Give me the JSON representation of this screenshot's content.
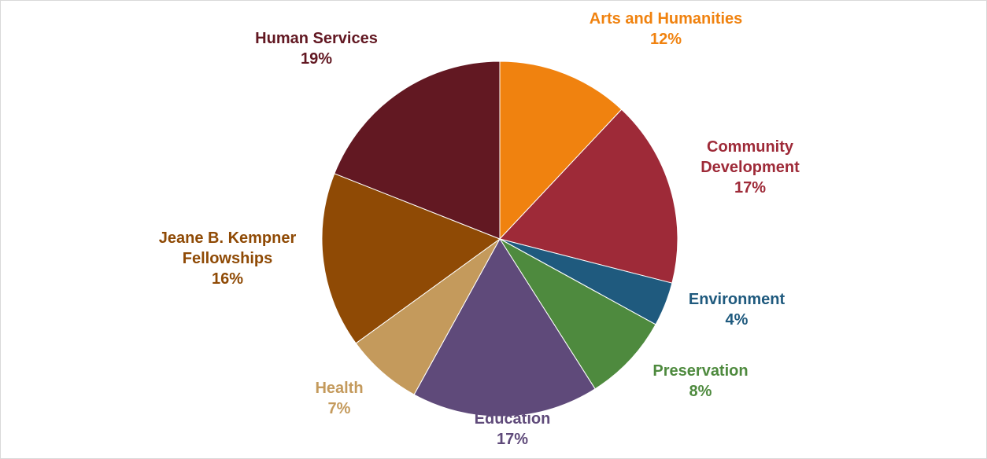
{
  "chart_data": {
    "type": "pie",
    "title": "",
    "start_angle_deg": 0,
    "direction": "clockwise",
    "slices": [
      {
        "name": "Arts and Humanities",
        "label_lines": [
          "Arts and Humanities"
        ],
        "percent_label": "12%",
        "value": 12,
        "color": "#f0820f"
      },
      {
        "name": "Community Development",
        "label_lines": [
          "Community",
          "Development"
        ],
        "percent_label": "17%",
        "value": 17,
        "color": "#9e2a38"
      },
      {
        "name": "Environment",
        "label_lines": [
          "Environment"
        ],
        "percent_label": "4%",
        "value": 4,
        "color": "#1f5a7e"
      },
      {
        "name": "Preservation",
        "label_lines": [
          "Preservation"
        ],
        "percent_label": "8%",
        "value": 8,
        "color": "#4e8a3e"
      },
      {
        "name": "Education",
        "label_lines": [
          "Education"
        ],
        "percent_label": "17%",
        "value": 17,
        "color": "#5f4a7a"
      },
      {
        "name": "Health",
        "label_lines": [
          "Health"
        ],
        "percent_label": "7%",
        "value": 7,
        "color": "#c49a5c"
      },
      {
        "name": "Jeane B. Kempner Fellowships",
        "label_lines": [
          "Jeane B. Kempner",
          "Fellowships"
        ],
        "percent_label": "16%",
        "value": 16,
        "color": "#8f4a05"
      },
      {
        "name": "Human Services",
        "label_lines": [
          "Human Services"
        ],
        "percent_label": "19%",
        "value": 19,
        "color": "#621822"
      }
    ]
  }
}
